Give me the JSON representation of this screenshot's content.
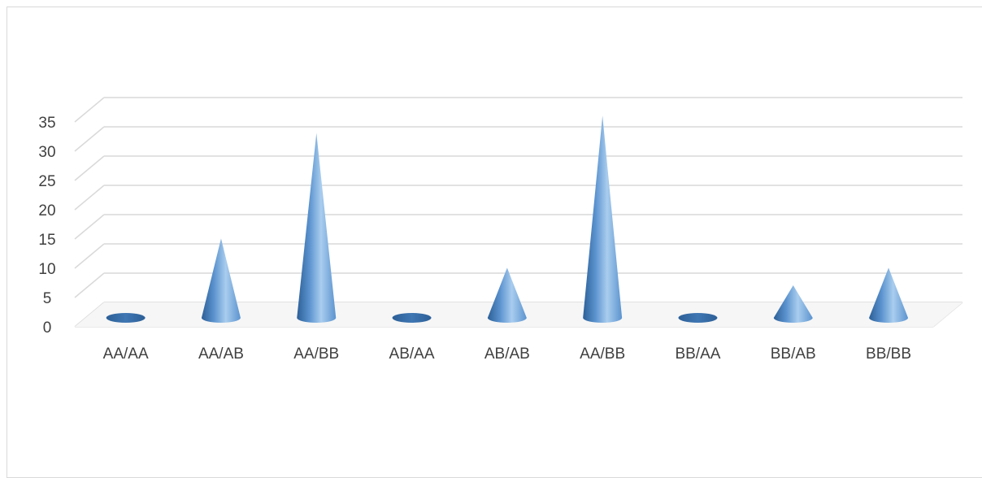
{
  "chart_data": {
    "type": "bar",
    "bar_shape": "3d-cone",
    "categories": [
      "AA/AA",
      "AA/AB",
      "AA/BB",
      "AB/AA",
      "AB/AB",
      "AA/BB",
      "BB/AA",
      "BB/AB",
      "BB/BB"
    ],
    "values": [
      0,
      13,
      31,
      0,
      8,
      34,
      0,
      5,
      8
    ],
    "title": "",
    "xlabel": "",
    "ylabel": "",
    "ylim": [
      0,
      35
    ],
    "yticks": [
      "0",
      "5",
      "10",
      "15",
      "20",
      "25",
      "30",
      "35"
    ],
    "grid": true,
    "legend": "none",
    "colors": {
      "cone_light": "#a9cdee",
      "cone_mid": "#5b93cf",
      "cone_dark": "#2c5f97",
      "grid": "#d9d9d9",
      "text": "#404040"
    }
  }
}
